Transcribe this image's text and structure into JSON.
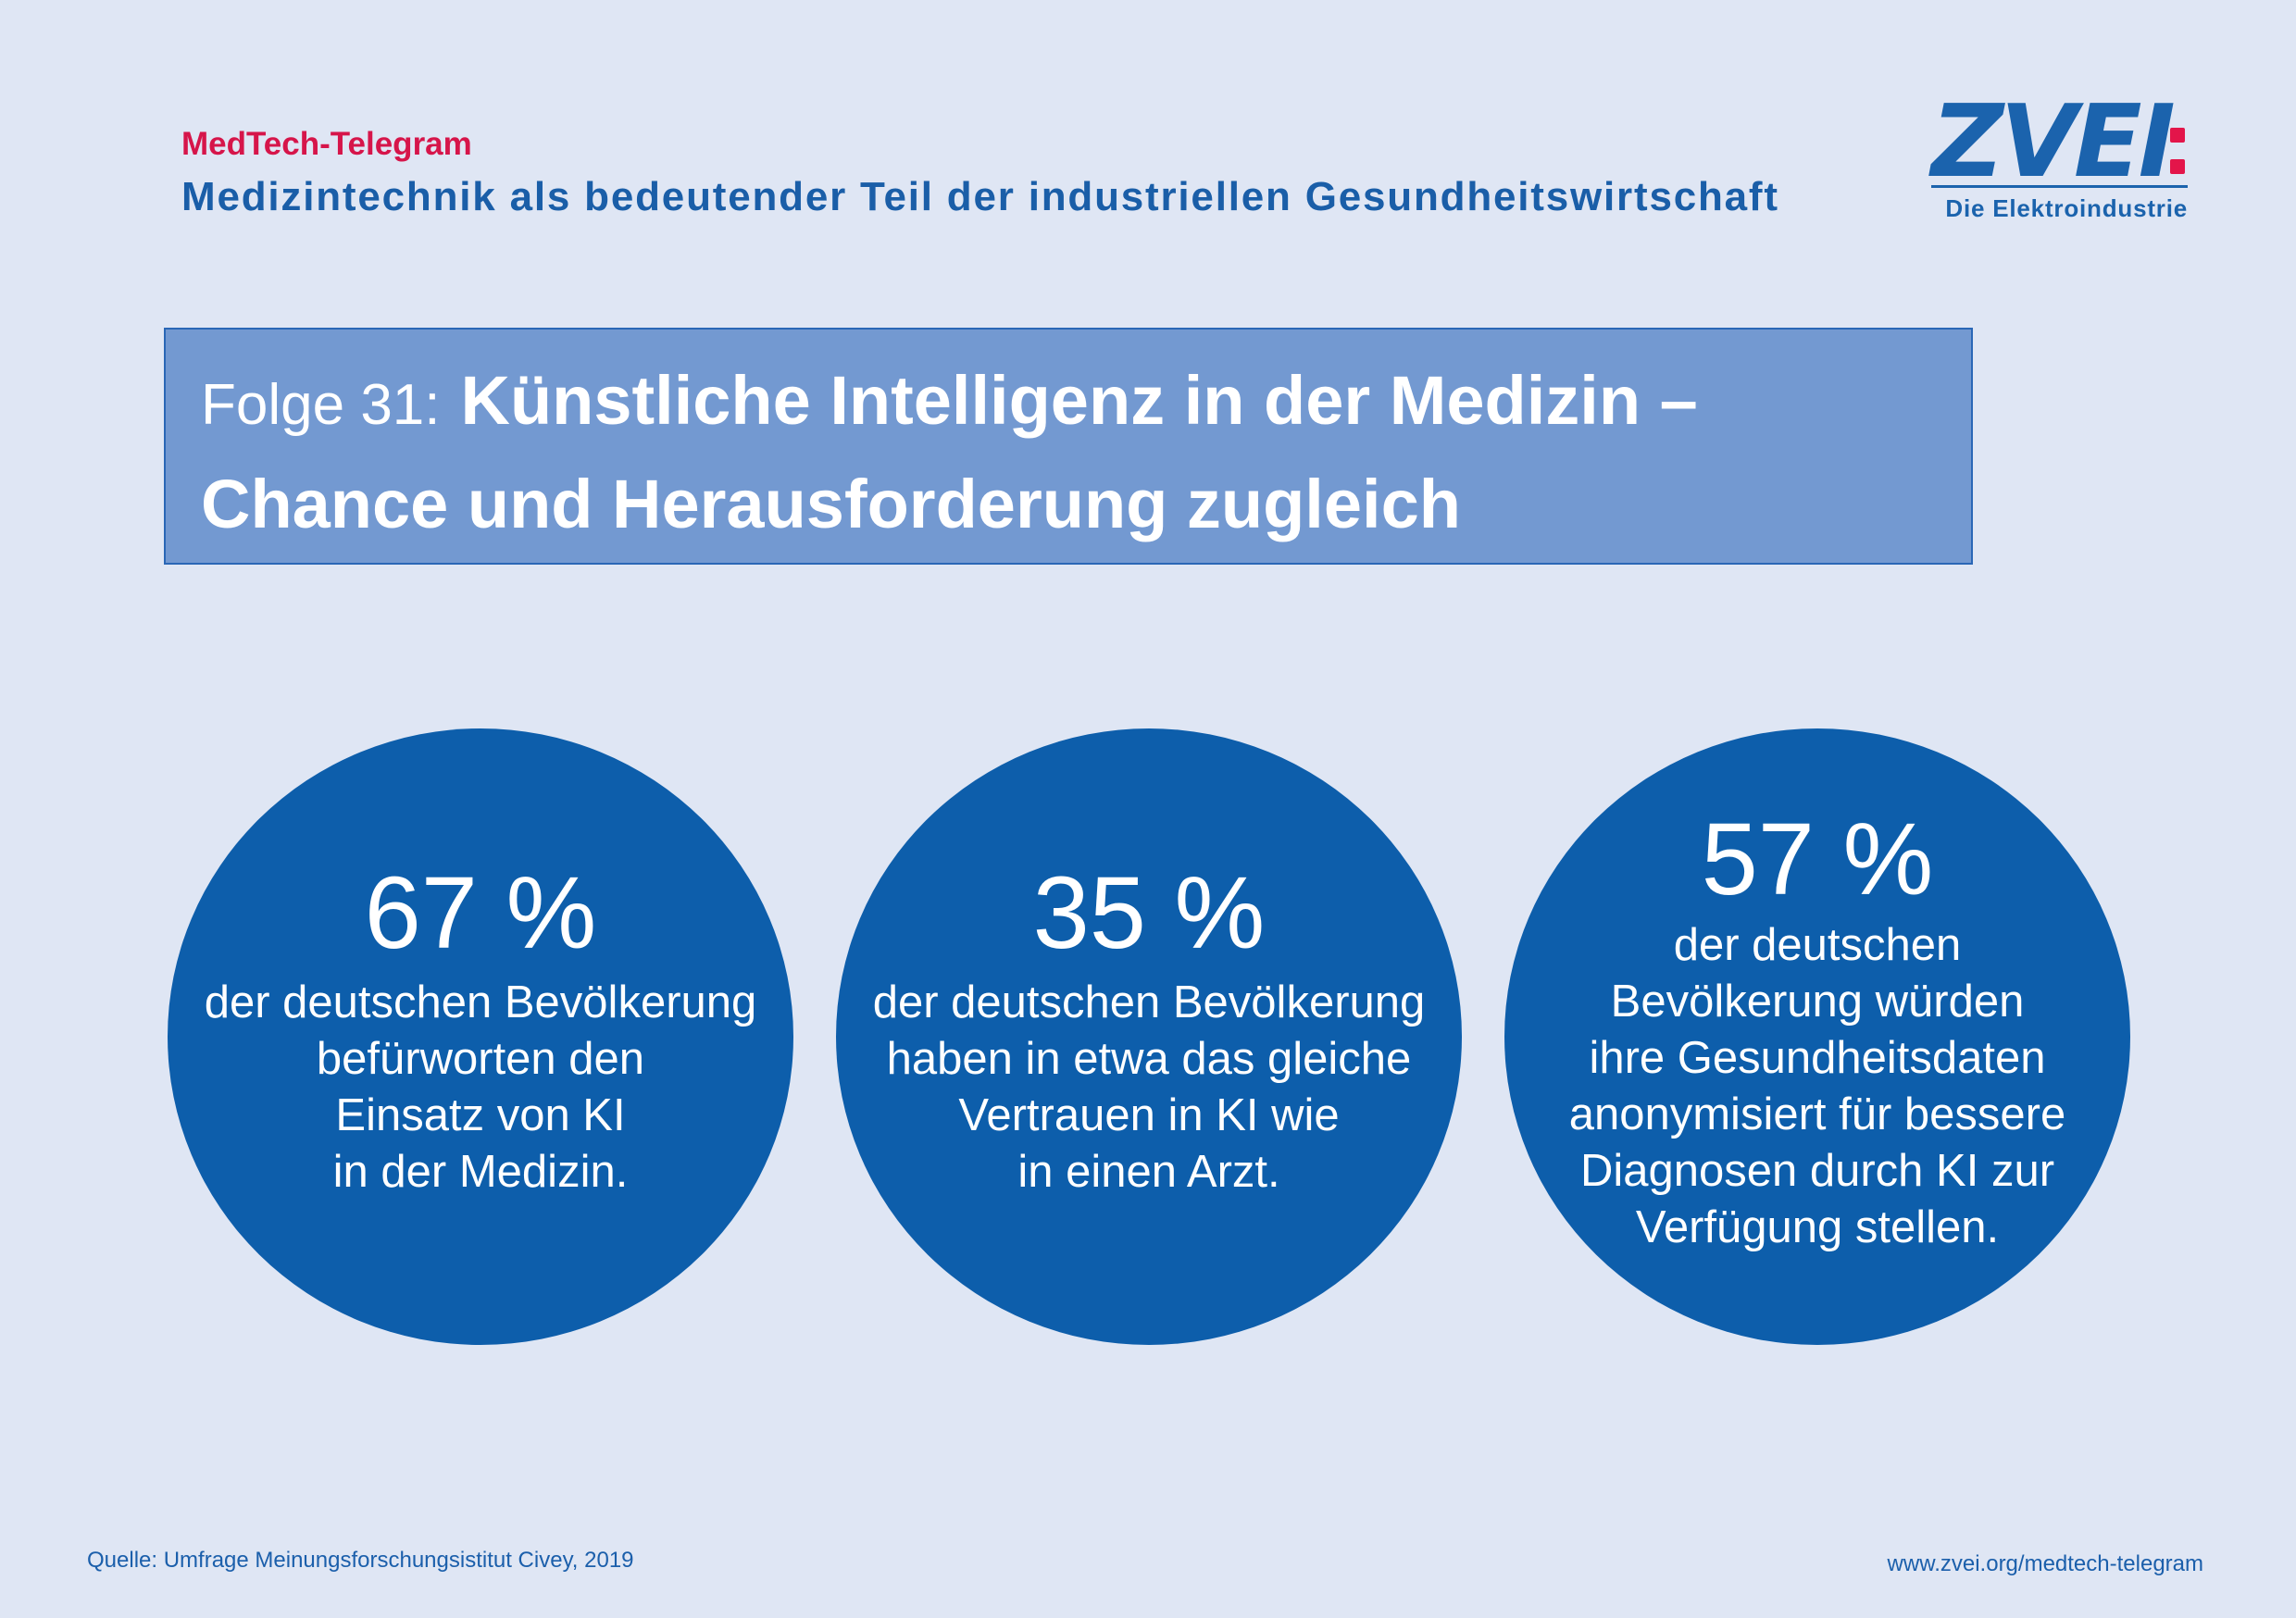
{
  "header": {
    "kicker": "MedTech-Telegram",
    "subtitle": "Medizintechnik als bedeutender Teil der industriellen Gesundheitswirtschaft"
  },
  "logo": {
    "wordmark": "ZVEI",
    "tagline": "Die Elektroindustrie",
    "colors": {
      "blue": "#1b63ad",
      "red": "#e3154a"
    }
  },
  "headline": {
    "prefix": "Folge 31:",
    "line1": "Künstliche Intelligenz in der Medizin –",
    "line2": "Chance und Herausforderung zugleich"
  },
  "stats": [
    {
      "value": "67 %",
      "lines": [
        "der deutschen Bevölkerung",
        "befürworten den",
        "Einsatz von KI",
        "in der Medizin."
      ]
    },
    {
      "value": "35 %",
      "lines": [
        "der deutschen Bevölkerung",
        "haben in etwa das gleiche",
        "Vertrauen in KI wie",
        "in einen Arzt."
      ]
    },
    {
      "value": "57 %",
      "lines": [
        "der deutschen",
        "Bevölkerung würden",
        "ihre Gesundheitsdaten",
        "anonymisiert für bessere",
        "Diagnosen durch KI zur",
        "Verfügung stellen."
      ]
    }
  ],
  "footer": {
    "source": "Quelle: Umfrage Meinungsforschungsistitut Civey, 2019",
    "url": "www.zvei.org/medtech-telegram"
  },
  "colors": {
    "background": "#dfe6f4",
    "circle": "#0d5eab",
    "headline_box": "#7399d1",
    "accent_red": "#d6154a",
    "text_blue": "#1a5ea8"
  }
}
